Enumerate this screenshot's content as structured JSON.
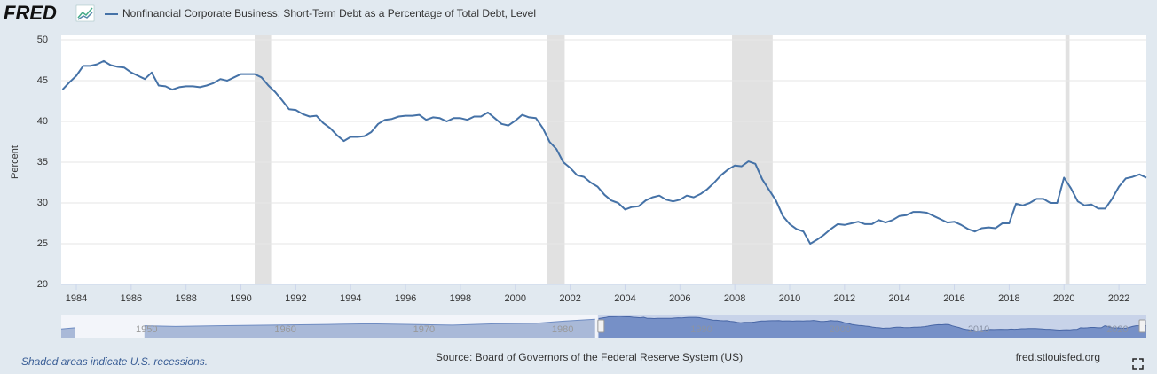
{
  "chart_data": {
    "type": "line",
    "logo": "FRED",
    "ylabel": "Percent",
    "note": "Shaded areas indicate U.S. recessions.",
    "source": "Source: Board of Governors of the Federal Reserve System (US)",
    "site": "fred.stlouisfed.org",
    "xlim": [
      1983.45,
      2023.0
    ],
    "xticks": [
      1984,
      1986,
      1988,
      1990,
      1992,
      1994,
      1996,
      1998,
      2000,
      2002,
      2004,
      2006,
      2008,
      2010,
      2012,
      2014,
      2016,
      2018,
      2020,
      2022
    ],
    "ylim": [
      20,
      50
    ],
    "yticks": [
      20,
      25,
      30,
      35,
      40,
      45,
      50
    ],
    "grid": true,
    "recessions": [
      [
        1990.5,
        1991.1
      ],
      [
        2001.17,
        2001.8
      ],
      [
        2007.9,
        2009.38
      ],
      [
        2020.05,
        2020.2
      ]
    ],
    "series": [
      {
        "name": "Nonfinancial Corporate Business; Short-Term Debt as a Percentage of Total Debt, Level",
        "color": "#4572a7",
        "x": [
          1983.5,
          1983.75,
          1984,
          1984.25,
          1984.5,
          1984.75,
          1985,
          1985.25,
          1985.5,
          1985.75,
          1986,
          1986.25,
          1986.5,
          1986.75,
          1987,
          1987.25,
          1987.5,
          1987.75,
          1988,
          1988.25,
          1988.5,
          1988.75,
          1989,
          1989.25,
          1989.5,
          1989.75,
          1990,
          1990.25,
          1990.5,
          1990.75,
          1991,
          1991.25,
          1991.5,
          1991.75,
          1992,
          1992.25,
          1992.5,
          1992.75,
          1993,
          1993.25,
          1993.5,
          1993.75,
          1994,
          1994.25,
          1994.5,
          1994.75,
          1995,
          1995.25,
          1995.5,
          1995.75,
          1996,
          1996.25,
          1996.5,
          1996.75,
          1997,
          1997.25,
          1997.5,
          1997.75,
          1998,
          1998.25,
          1998.5,
          1998.75,
          1999,
          1999.25,
          1999.5,
          1999.75,
          2000,
          2000.25,
          2000.5,
          2000.75,
          2001,
          2001.25,
          2001.5,
          2001.75,
          2002,
          2002.25,
          2002.5,
          2002.75,
          2003,
          2003.25,
          2003.5,
          2003.75,
          2004,
          2004.25,
          2004.5,
          2004.75,
          2005,
          2005.25,
          2005.5,
          2005.75,
          2006,
          2006.25,
          2006.5,
          2006.75,
          2007,
          2007.25,
          2007.5,
          2007.75,
          2008,
          2008.25,
          2008.5,
          2008.75,
          2009,
          2009.25,
          2009.5,
          2009.75,
          2010,
          2010.25,
          2010.5,
          2010.75,
          2011,
          2011.25,
          2011.5,
          2011.75,
          2012,
          2012.25,
          2012.5,
          2012.75,
          2013,
          2013.25,
          2013.5,
          2013.75,
          2014,
          2014.25,
          2014.5,
          2014.75,
          2015,
          2015.25,
          2015.5,
          2015.75,
          2016,
          2016.25,
          2016.5,
          2016.75,
          2017,
          2017.25,
          2017.5,
          2017.75,
          2018,
          2018.25,
          2018.5,
          2018.75,
          2019,
          2019.25,
          2019.5,
          2019.75,
          2020,
          2020.25,
          2020.5,
          2020.75,
          2021,
          2021.25,
          2021.5,
          2021.75,
          2022,
          2022.25,
          2022.5,
          2022.75,
          2023
        ],
        "values": [
          43.9,
          44.8,
          45.6,
          46.8,
          46.8,
          47.0,
          47.4,
          46.9,
          46.7,
          46.6,
          46.0,
          45.6,
          45.2,
          46.0,
          44.4,
          44.3,
          43.9,
          44.2,
          44.3,
          44.3,
          44.2,
          44.4,
          44.7,
          45.2,
          45.0,
          45.4,
          45.8,
          45.8,
          45.8,
          45.4,
          44.4,
          43.6,
          42.6,
          41.5,
          41.4,
          40.9,
          40.6,
          40.7,
          39.8,
          39.2,
          38.3,
          37.6,
          38.1,
          38.1,
          38.2,
          38.7,
          39.7,
          40.2,
          40.3,
          40.6,
          40.7,
          40.7,
          40.8,
          40.2,
          40.5,
          40.4,
          40.0,
          40.4,
          40.4,
          40.2,
          40.6,
          40.6,
          41.1,
          40.4,
          39.7,
          39.5,
          40.1,
          40.8,
          40.5,
          40.4,
          39.2,
          37.5,
          36.6,
          35.0,
          34.3,
          33.4,
          33.2,
          32.5,
          32.0,
          31.0,
          30.3,
          30.0,
          29.2,
          29.5,
          29.6,
          30.3,
          30.7,
          30.9,
          30.4,
          30.2,
          30.4,
          30.9,
          30.7,
          31.1,
          31.7,
          32.5,
          33.4,
          34.1,
          34.6,
          34.5,
          35.1,
          34.8,
          32.9,
          31.6,
          30.3,
          28.4,
          27.4,
          26.8,
          26.5,
          25.0,
          25.5,
          26.1,
          26.8,
          27.4,
          27.3,
          27.5,
          27.7,
          27.4,
          27.4,
          27.9,
          27.6,
          27.9,
          28.4,
          28.5,
          28.9,
          28.9,
          28.8,
          28.4,
          28.0,
          27.6,
          27.7,
          27.3,
          26.8,
          26.5,
          26.9,
          27.0,
          26.9,
          27.5,
          27.5,
          29.9,
          29.7,
          30.0,
          30.5,
          30.5,
          30.0,
          30.0,
          33.1,
          31.8,
          30.2,
          29.7,
          29.8,
          29.3,
          29.3,
          30.5,
          32.0,
          33.0,
          33.2,
          33.5,
          33.1
        ]
      }
    ],
    "navigator": {
      "xlim": [
        1944.75,
        2023.0
      ],
      "ylim": [
        15,
        50
      ],
      "xticks": [
        1950,
        1960,
        1970,
        1980,
        1990,
        2000,
        2010,
        2020
      ],
      "x": [
        1944.75,
        1945.75,
        1946,
        1950.75,
        1953,
        1956,
        1960,
        1964,
        1967,
        1970,
        1973,
        1976,
        1979,
        1981,
        1983.25
      ],
      "values": [
        28,
        30,
        null,
        33,
        32,
        33,
        34,
        35,
        36,
        35,
        34,
        36,
        37,
        40,
        43
      ]
    }
  }
}
